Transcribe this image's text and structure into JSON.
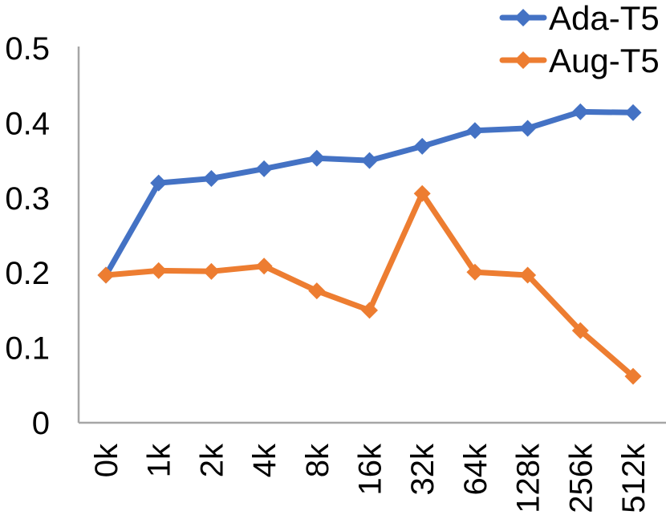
{
  "chart_data": {
    "type": "line",
    "title": "",
    "xlabel": "",
    "ylabel": "",
    "categories": [
      "0k",
      "1k",
      "2k",
      "4k",
      "8k",
      "16k",
      "32k",
      "64k",
      "128k",
      "256k",
      "512k"
    ],
    "series": [
      {
        "name": "Ada-T5",
        "color": "#4472C4",
        "marker": "diamond",
        "values": [
          0.197,
          0.32,
          0.326,
          0.339,
          0.353,
          0.35,
          0.369,
          0.39,
          0.393,
          0.415,
          0.414
        ]
      },
      {
        "name": "Aug-T5",
        "color": "#ED7D31",
        "marker": "diamond",
        "values": [
          0.197,
          0.203,
          0.202,
          0.209,
          0.176,
          0.15,
          0.306,
          0.201,
          0.197,
          0.123,
          0.062
        ]
      }
    ],
    "ylim": [
      0,
      0.5
    ],
    "y_ticks": [
      {
        "label": "0",
        "value": 0
      },
      {
        "label": "0.1",
        "value": 0.1
      },
      {
        "label": "0.2",
        "value": 0.2
      },
      {
        "label": "0.3",
        "value": 0.3
      },
      {
        "label": "0.4",
        "value": 0.4
      },
      {
        "label": "0.5",
        "value": 0.5
      }
    ],
    "x_tick_rotation": -90,
    "grid": "off",
    "legend_position": "top-right",
    "axis_color": "#A6A6A6",
    "text_color": "#000000"
  }
}
